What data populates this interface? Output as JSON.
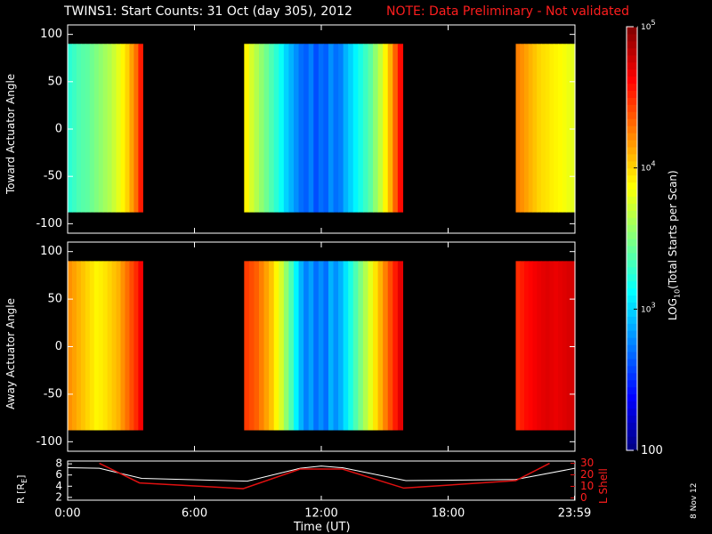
{
  "header": {
    "title": "TWINS1: Start Counts: 31 Oct (day 305), 2012",
    "note": "NOTE: Data Preliminary - Not validated"
  },
  "colors": {
    "background": "#000000",
    "axes": "#ffffff",
    "note_text": "#ff1e1e",
    "r_line": "#ffffff",
    "lshell_line": "#e01010"
  },
  "date_stamp": "8 Nov 12",
  "chart_data": [
    {
      "type": "heatmap",
      "panel": "toward",
      "ylabel": "Toward Actuator Angle",
      "xlabel": "",
      "xlim": [
        0,
        24
      ],
      "ylim": [
        -110,
        110
      ],
      "yticks": [
        100,
        50,
        0,
        -50,
        -100
      ],
      "data_y_range": [
        -88,
        90
      ],
      "segments": [
        {
          "t_start": 0.0,
          "t_end": 3.55,
          "log_counts": [
            3.25,
            3.3,
            3.35,
            3.38,
            3.4,
            3.45,
            3.5,
            3.55,
            3.6,
            3.65,
            3.72,
            3.8,
            3.9,
            4.0,
            4.15,
            4.3,
            4.55
          ]
        },
        {
          "t_start": 8.35,
          "t_end": 15.85,
          "log_counts": [
            3.9,
            3.75,
            3.65,
            3.55,
            3.45,
            3.35,
            3.25,
            3.15,
            3.0,
            2.9,
            2.8,
            2.7,
            2.65,
            2.75,
            2.6,
            2.7,
            2.65,
            2.8,
            2.7,
            2.75,
            2.9,
            3.0,
            3.1,
            3.2,
            3.3,
            3.4,
            3.55,
            3.7,
            3.9,
            4.1,
            4.35,
            4.6
          ]
        },
        {
          "t_start": 21.2,
          "t_end": 24.0,
          "log_counts": [
            4.25,
            4.2,
            4.15,
            4.1,
            4.05,
            4.0,
            3.97,
            3.95,
            3.92,
            3.9,
            3.88,
            3.85,
            3.82,
            3.8
          ]
        }
      ]
    },
    {
      "type": "heatmap",
      "panel": "away",
      "ylabel": "Away Actuator Angle",
      "xlabel": "",
      "xlim": [
        0,
        24
      ],
      "ylim": [
        -110,
        110
      ],
      "yticks": [
        100,
        50,
        0,
        -50,
        -100
      ],
      "data_y_range": [
        -88,
        90
      ],
      "segments": [
        {
          "t_start": 0.0,
          "t_end": 3.55,
          "log_counts": [
            4.2,
            4.15,
            4.1,
            4.05,
            4.0,
            3.95,
            3.9,
            3.92,
            3.95,
            4.0,
            4.05,
            4.1,
            4.2,
            4.3,
            4.4,
            4.5,
            4.65
          ]
        },
        {
          "t_start": 8.35,
          "t_end": 15.85,
          "log_counts": [
            4.45,
            4.4,
            4.35,
            4.25,
            4.15,
            4.05,
            3.9,
            3.75,
            3.55,
            3.35,
            3.1,
            2.9,
            2.75,
            2.85,
            2.7,
            2.8,
            2.7,
            2.9,
            2.8,
            2.9,
            3.05,
            3.2,
            3.35,
            3.5,
            3.65,
            3.8,
            3.95,
            4.1,
            4.25,
            4.4,
            4.55,
            4.7
          ]
        },
        {
          "t_start": 21.2,
          "t_end": 24.0,
          "log_counts": [
            4.5,
            4.55,
            4.6,
            4.62,
            4.65,
            4.68,
            4.7,
            4.72,
            4.7,
            4.68,
            4.7,
            4.72,
            4.74,
            4.75
          ]
        }
      ]
    },
    {
      "type": "line",
      "panel": "orbit",
      "ylabel": "R [R_E]",
      "xlabel": "Time (UT)",
      "xlim": [
        0,
        24
      ],
      "ylim": [
        1.5,
        8.5
      ],
      "yticks": [
        2,
        4,
        6,
        8
      ],
      "xticks": [
        0,
        6,
        12,
        18,
        23.98
      ],
      "xtick_labels": [
        "0:00",
        "6:00",
        "12:00",
        "18:00",
        "23:59"
      ],
      "series": [
        {
          "name": "",
          "x": [
            0,
            1.5,
            3.5,
            8.5,
            11.0,
            12.0,
            13.0,
            16.0,
            21.2,
            24.0
          ],
          "values": [
            7.3,
            7.2,
            5.4,
            4.9,
            7.2,
            7.6,
            7.3,
            5.0,
            5.2,
            7.2
          ]
        }
      ]
    },
    {
      "type": "line",
      "panel": "orbit-lshell",
      "ylabel": "L Shell",
      "ylim": [
        -2,
        32
      ],
      "yticks": [
        0,
        10,
        20,
        30
      ],
      "series": [
        {
          "name": "",
          "x": [
            1.5,
            3.4,
            8.3,
            11.0,
            13.0,
            15.9,
            21.2,
            22.8
          ],
          "values": [
            30,
            13,
            8,
            25,
            25,
            8.5,
            15,
            30
          ]
        }
      ]
    },
    {
      "type": "colorbar",
      "label": "LOG10(Total Starts per Scan)",
      "label_main": "LOG",
      "label_sub": "10",
      "label_rest": "(Total Starts per Scan)",
      "range_log": [
        2,
        5
      ],
      "tick_labels": [
        {
          "main": "10",
          "exp": "5",
          "log": 5
        },
        {
          "main": "10",
          "exp": "4",
          "log": 4
        },
        {
          "main": "10",
          "exp": "3",
          "log": 3
        },
        {
          "main": "100",
          "exp": "",
          "log": 2
        }
      ]
    }
  ]
}
